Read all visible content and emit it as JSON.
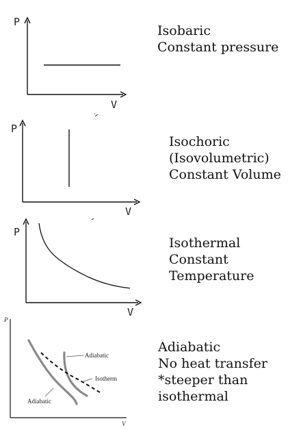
{
  "panels": [
    {
      "id": "isobaric",
      "y_label": "P",
      "x_label": "V",
      "lines": [
        "Isobaric",
        "Constant pressure"
      ]
    },
    {
      "id": "isochoric",
      "y_label": "P",
      "x_label": "V",
      "lines": [
        "Isochoric",
        "(Isovolumetric)",
        "Constant Volume"
      ]
    },
    {
      "id": "isothermal",
      "y_label": "P",
      "x_label": "V",
      "lines": [
        "Isothermal",
        "Constant",
        "Temperature"
      ]
    },
    {
      "id": "adiabatic",
      "y_label": "P",
      "x_label": "V",
      "curve_labels": {
        "adiabatic_top": "Adiabatic",
        "isotherm": "Isotherm",
        "adiabatic_bottom": "Adiabatic"
      },
      "lines": [
        "Adiabatic",
        "No heat transfer",
        "*steeper than",
        "isothermal"
      ]
    }
  ]
}
